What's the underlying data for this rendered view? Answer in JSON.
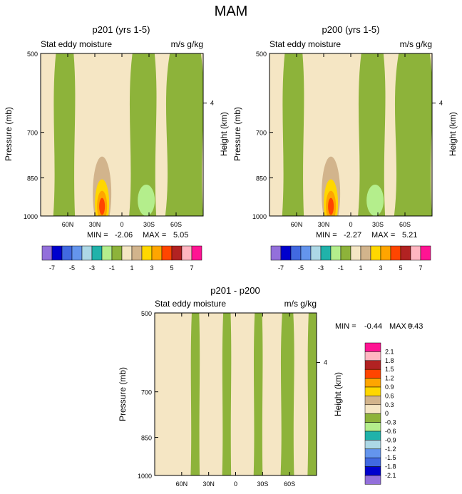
{
  "figure": {
    "title": "MAM"
  },
  "colors": {
    "palette_top": [
      "#9370DB",
      "#0000CD",
      "#4169E1",
      "#6495ED",
      "#ADD8E6",
      "#20B2AA",
      "#B4EE8C",
      "#8DB33A",
      "#F5E6C4",
      "#D2B48C",
      "#FFD700",
      "#FFA500",
      "#FF4500",
      "#B22222",
      "#FFB6C1",
      "#FF1493"
    ],
    "palette_diff": [
      "#9370DB",
      "#0000CD",
      "#4169E1",
      "#6495ED",
      "#ADD8E6",
      "#20B2AA",
      "#B4EE8C",
      "#8DB33A",
      "#F5E6C4",
      "#D2B48C",
      "#FFD700",
      "#FFA500",
      "#FF4500",
      "#B22222",
      "#FFB6C1",
      "#FF1493"
    ],
    "background_field": "#F5E6C4",
    "green_field": "#8DB33A"
  },
  "chart_data": [
    {
      "type": "heatmap",
      "id": "p201",
      "title": "p201 (yrs 1-5)",
      "left_label": "Stat eddy moisture",
      "right_label": "m/s g/kg",
      "ylabel": "Pressure (mb)",
      "ylabel_right": "Height (km)",
      "yticks": [
        "500",
        "700",
        "850",
        "1000"
      ],
      "ytick_values": [
        500,
        700,
        850,
        1000
      ],
      "ytick_right": [
        "4"
      ],
      "xticks": [
        "60N",
        "30N",
        "0",
        "30S",
        "60S"
      ],
      "xtick_values": [
        60,
        30,
        0,
        -30,
        -60
      ],
      "xlim": [
        90,
        -90
      ],
      "ylim": [
        1000,
        500
      ],
      "min_label": "MIN =",
      "min": "-2.06",
      "max_label": "MAX =",
      "max": "5.05",
      "bands": [
        {
          "lat_from": 90,
          "lat_to": 76,
          "sign": "positive"
        },
        {
          "lat_from": 76,
          "lat_to": 52,
          "sign": "negative"
        },
        {
          "lat_from": 52,
          "lat_to": -8,
          "sign": "positive"
        },
        {
          "lat_from": -8,
          "lat_to": -38,
          "sign": "negative"
        },
        {
          "lat_from": -38,
          "lat_to": -48,
          "sign": "positive"
        },
        {
          "lat_from": -48,
          "lat_to": -90,
          "sign": "negative"
        }
      ],
      "maximum": {
        "lat": 22,
        "pressure": 960,
        "value": 5.05
      }
    },
    {
      "type": "heatmap",
      "id": "p200",
      "title": "p200 (yrs 1-5)",
      "left_label": "Stat eddy moisture",
      "right_label": "m/s g/kg",
      "ylabel": "Pressure (mb)",
      "ylabel_right": "Height (km)",
      "yticks": [
        "500",
        "700",
        "850",
        "1000"
      ],
      "ytick_values": [
        500,
        700,
        850,
        1000
      ],
      "ytick_right": [
        "4"
      ],
      "xticks": [
        "60N",
        "30N",
        "0",
        "30S",
        "60S"
      ],
      "xtick_values": [
        60,
        30,
        0,
        -30,
        -60
      ],
      "xlim": [
        90,
        -90
      ],
      "ylim": [
        1000,
        500
      ],
      "min_label": "MIN =",
      "min": "-2.27",
      "max_label": "MAX =",
      "max": "5.21",
      "bands": [
        {
          "lat_from": 90,
          "lat_to": 76,
          "sign": "positive"
        },
        {
          "lat_from": 76,
          "lat_to": 52,
          "sign": "negative"
        },
        {
          "lat_from": 52,
          "lat_to": -8,
          "sign": "positive"
        },
        {
          "lat_from": -8,
          "lat_to": -38,
          "sign": "negative"
        },
        {
          "lat_from": -38,
          "lat_to": -48,
          "sign": "positive"
        },
        {
          "lat_from": -48,
          "lat_to": -90,
          "sign": "negative"
        }
      ],
      "maximum": {
        "lat": 22,
        "pressure": 960,
        "value": 5.21
      }
    },
    {
      "type": "heatmap",
      "id": "diff",
      "title": "p201 - p200",
      "left_label": "Stat eddy moisture",
      "right_label": "m/s g/kg",
      "ylabel": "Pressure (mb)",
      "ylabel_right": "Height (km)",
      "yticks": [
        "500",
        "700",
        "850",
        "1000"
      ],
      "ytick_values": [
        500,
        700,
        850,
        1000
      ],
      "ytick_right": [
        "4"
      ],
      "xticks": [
        "60N",
        "30N",
        "0",
        "30S",
        "60S"
      ],
      "xtick_values": [
        60,
        30,
        0,
        -30,
        -60
      ],
      "xlim": [
        90,
        -90
      ],
      "ylim": [
        1000,
        500
      ],
      "min_label": "MIN =",
      "min": "-0.44",
      "max_label": "MAX =",
      "max": "0.43",
      "bands": [
        {
          "lat_from": 90,
          "lat_to": 50,
          "sign": "positive"
        },
        {
          "lat_from": 50,
          "lat_to": 40,
          "sign": "negative"
        },
        {
          "lat_from": 40,
          "lat_to": 15,
          "sign": "positive"
        },
        {
          "lat_from": 15,
          "lat_to": 5,
          "sign": "negative"
        },
        {
          "lat_from": 5,
          "lat_to": -20,
          "sign": "positive"
        },
        {
          "lat_from": -20,
          "lat_to": -30,
          "sign": "negative"
        },
        {
          "lat_from": -30,
          "lat_to": -50,
          "sign": "positive"
        },
        {
          "lat_from": -50,
          "lat_to": -65,
          "sign": "negative"
        },
        {
          "lat_from": -65,
          "lat_to": -80,
          "sign": "positive"
        },
        {
          "lat_from": -80,
          "lat_to": -90,
          "sign": "negative"
        }
      ]
    }
  ],
  "colorbar_top": {
    "labels": [
      "-7",
      "-5",
      "-3",
      "-1",
      "1",
      "3",
      "5",
      "7"
    ]
  },
  "colorbar_diff": {
    "labels": [
      "2.1",
      "1.8",
      "1.5",
      "1.2",
      "0.9",
      "0.6",
      "0.3",
      "0",
      "-0.3",
      "-0.6",
      "-0.9",
      "-1.2",
      "-1.5",
      "-1.8",
      "-2.1"
    ]
  }
}
